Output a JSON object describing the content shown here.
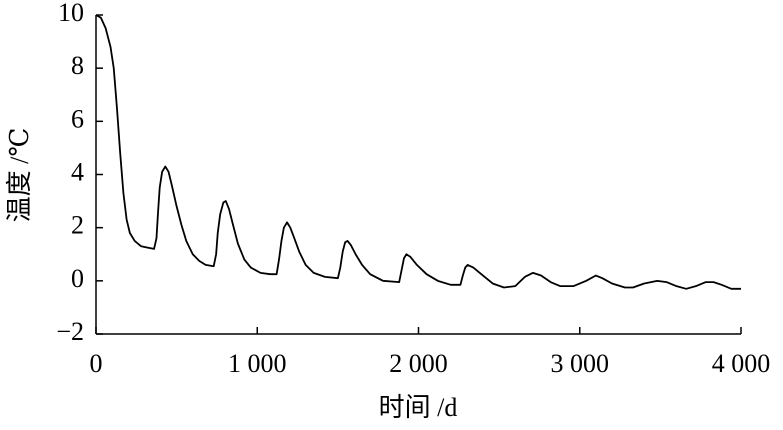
{
  "chart_data": {
    "type": "line",
    "xlabel": "时间 /d",
    "ylabel": "温度 /℃",
    "x": [
      0,
      30,
      60,
      90,
      110,
      130,
      150,
      170,
      190,
      210,
      240,
      280,
      320,
      360,
      375,
      385,
      395,
      410,
      430,
      450,
      470,
      500,
      530,
      560,
      600,
      640,
      680,
      730,
      745,
      755,
      770,
      790,
      805,
      825,
      850,
      880,
      920,
      960,
      1020,
      1080,
      1120,
      1135,
      1150,
      1165,
      1185,
      1205,
      1230,
      1260,
      1300,
      1350,
      1420,
      1500,
      1515,
      1530,
      1545,
      1560,
      1580,
      1610,
      1650,
      1700,
      1780,
      1880,
      1895,
      1910,
      1925,
      1950,
      1990,
      2050,
      2120,
      2200,
      2260,
      2275,
      2290,
      2305,
      2340,
      2400,
      2460,
      2530,
      2600,
      2660,
      2710,
      2760,
      2820,
      2880,
      2960,
      3040,
      3100,
      3140,
      3200,
      3280,
      3330,
      3400,
      3480,
      3540,
      3600,
      3660,
      3720,
      3780,
      3830,
      3880,
      3940,
      4000
    ],
    "series": [
      {
        "color": "#000000",
        "values": [
          10,
          9.9,
          9.5,
          8.8,
          8,
          6.5,
          4.8,
          3.3,
          2.3,
          1.8,
          1.5,
          1.3,
          1.25,
          1.2,
          1.6,
          2.6,
          3.5,
          4.1,
          4.3,
          4.1,
          3.6,
          2.8,
          2.1,
          1.5,
          1.0,
          0.75,
          0.6,
          0.55,
          1.0,
          1.8,
          2.5,
          2.95,
          3.0,
          2.7,
          2.1,
          1.4,
          0.8,
          0.5,
          0.3,
          0.25,
          0.25,
          0.8,
          1.5,
          2.0,
          2.2,
          2.0,
          1.6,
          1.1,
          0.6,
          0.3,
          0.15,
          0.1,
          0.5,
          1.1,
          1.45,
          1.5,
          1.35,
          1.0,
          0.6,
          0.25,
          0.0,
          -0.05,
          0.4,
          0.85,
          1.0,
          0.9,
          0.6,
          0.25,
          0.0,
          -0.15,
          -0.15,
          0.2,
          0.5,
          0.6,
          0.5,
          0.2,
          -0.1,
          -0.25,
          -0.2,
          0.15,
          0.3,
          0.2,
          -0.05,
          -0.2,
          -0.2,
          0.0,
          0.2,
          0.1,
          -0.1,
          -0.25,
          -0.25,
          -0.1,
          0.0,
          -0.05,
          -0.2,
          -0.3,
          -0.2,
          -0.05,
          -0.05,
          -0.15,
          -0.3,
          -0.3
        ]
      }
    ],
    "xlim": [
      0,
      4000
    ],
    "xticks": [
      0,
      {
        "value": 1000,
        "label": "1 000"
      },
      {
        "value": 2000,
        "label": "2 000"
      },
      {
        "value": 3000,
        "label": "3 000"
      },
      {
        "value": 4000,
        "label": "4 000"
      }
    ],
    "ylim": [
      -2,
      10
    ],
    "yticks": [
      {
        "value": -2,
        "label": "−2"
      },
      0,
      2,
      4,
      6,
      8,
      10
    ]
  }
}
